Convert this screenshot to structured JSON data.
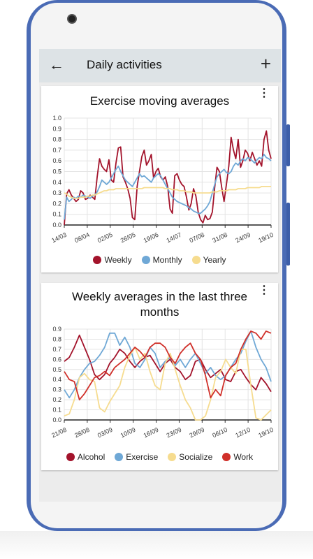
{
  "appbar": {
    "title": "Daily activities",
    "back_icon": "arrow-left",
    "add_icon": "plus"
  },
  "chart_data": [
    {
      "type": "line",
      "title": "Exercise moving averages",
      "x_ticks": [
        "14/03",
        "08/04",
        "02/05",
        "26/05",
        "19/06",
        "14/07",
        "07/08",
        "31/08",
        "24/09",
        "19/10"
      ],
      "y_ticks": [
        "0.0",
        "0.1",
        "0.2",
        "0.3",
        "0.4",
        "0.5",
        "0.6",
        "0.7",
        "0.8",
        "0.9",
        "1.0"
      ],
      "ylim": [
        0,
        1.0
      ],
      "legend": "bottom",
      "series": [
        {
          "name": "Weekly",
          "color": "#a3132b",
          "values": [
            0.0,
            0.29,
            0.33,
            0.28,
            0.25,
            0.22,
            0.24,
            0.32,
            0.3,
            0.24,
            0.25,
            0.28,
            0.26,
            0.24,
            0.45,
            0.62,
            0.55,
            0.52,
            0.5,
            0.61,
            0.42,
            0.4,
            0.58,
            0.72,
            0.73,
            0.45,
            0.4,
            0.34,
            0.25,
            0.07,
            0.05,
            0.36,
            0.5,
            0.64,
            0.7,
            0.56,
            0.6,
            0.66,
            0.44,
            0.5,
            0.53,
            0.45,
            0.42,
            0.45,
            0.36,
            0.15,
            0.11,
            0.46,
            0.48,
            0.42,
            0.38,
            0.36,
            0.26,
            0.14,
            0.2,
            0.34,
            0.27,
            0.12,
            0.05,
            0.02,
            0.09,
            0.05,
            0.06,
            0.12,
            0.35,
            0.54,
            0.5,
            0.35,
            0.22,
            0.38,
            0.55,
            0.82,
            0.7,
            0.62,
            0.8,
            0.54,
            0.6,
            0.7,
            0.67,
            0.6,
            0.68,
            0.62,
            0.56,
            0.6,
            0.55,
            0.8,
            0.88,
            0.7,
            0.62
          ]
        },
        {
          "name": "Monthly",
          "color": "#6fa8d6",
          "values": [
            0.05,
            0.26,
            0.22,
            0.24,
            0.26,
            0.25,
            0.27,
            0.26,
            0.28,
            0.27,
            0.26,
            0.25,
            0.27,
            0.28,
            0.31,
            0.36,
            0.42,
            0.4,
            0.38,
            0.4,
            0.44,
            0.48,
            0.52,
            0.55,
            0.5,
            0.46,
            0.42,
            0.4,
            0.38,
            0.36,
            0.4,
            0.44,
            0.48,
            0.45,
            0.46,
            0.44,
            0.42,
            0.4,
            0.44,
            0.46,
            0.48,
            0.46,
            0.42,
            0.38,
            0.34,
            0.3,
            0.26,
            0.24,
            0.22,
            0.21,
            0.2,
            0.19,
            0.18,
            0.16,
            0.15,
            0.13,
            0.12,
            0.11,
            0.11,
            0.13,
            0.15,
            0.18,
            0.22,
            0.3,
            0.38,
            0.45,
            0.48,
            0.5,
            0.52,
            0.49,
            0.48,
            0.5,
            0.55,
            0.58,
            0.56,
            0.6,
            0.62,
            0.6,
            0.63,
            0.62,
            0.6,
            0.58,
            0.61,
            0.63,
            0.62,
            0.66,
            0.63,
            0.62,
            0.6
          ]
        },
        {
          "name": "Yearly",
          "color": "#f6dc8f",
          "values": [
            0.3,
            0.29,
            0.27,
            0.26,
            0.25,
            0.25,
            0.25,
            0.26,
            0.26,
            0.26,
            0.27,
            0.27,
            0.28,
            0.28,
            0.29,
            0.3,
            0.31,
            0.32,
            0.32,
            0.33,
            0.33,
            0.33,
            0.34,
            0.34,
            0.34,
            0.34,
            0.34,
            0.34,
            0.34,
            0.34,
            0.34,
            0.34,
            0.34,
            0.34,
            0.35,
            0.35,
            0.35,
            0.35,
            0.35,
            0.35,
            0.35,
            0.35,
            0.35,
            0.34,
            0.34,
            0.34,
            0.33,
            0.33,
            0.33,
            0.32,
            0.32,
            0.32,
            0.31,
            0.31,
            0.31,
            0.3,
            0.3,
            0.3,
            0.3,
            0.3,
            0.3,
            0.3,
            0.3,
            0.31,
            0.31,
            0.31,
            0.32,
            0.32,
            0.32,
            0.32,
            0.33,
            0.33,
            0.33,
            0.33,
            0.34,
            0.34,
            0.34,
            0.34,
            0.35,
            0.35,
            0.35,
            0.35,
            0.35,
            0.35,
            0.36,
            0.36,
            0.36,
            0.36,
            0.36
          ]
        }
      ]
    },
    {
      "type": "line",
      "title": "Weekly averages in the last three months",
      "x_ticks": [
        "21/08",
        "28/08",
        "03/09",
        "10/09",
        "16/09",
        "23/09",
        "29/09",
        "06/10",
        "12/10",
        "19/10"
      ],
      "y_ticks": [
        "0.0",
        "0.1",
        "0.2",
        "0.3",
        "0.4",
        "0.5",
        "0.6",
        "0.7",
        "0.8",
        "0.9"
      ],
      "ylim": [
        0,
        0.9
      ],
      "legend": "bottom",
      "series": [
        {
          "name": "Alcohol",
          "color": "#a3132b",
          "values": [
            0.58,
            0.62,
            0.72,
            0.84,
            0.72,
            0.6,
            0.45,
            0.4,
            0.45,
            0.56,
            0.62,
            0.7,
            0.66,
            0.58,
            0.52,
            0.58,
            0.62,
            0.64,
            0.56,
            0.48,
            0.56,
            0.6,
            0.52,
            0.48,
            0.4,
            0.44,
            0.58,
            0.6,
            0.5,
            0.42,
            0.46,
            0.5,
            0.4,
            0.38,
            0.48,
            0.5,
            0.42,
            0.35,
            0.3,
            0.42,
            0.36,
            0.28
          ]
        },
        {
          "name": "Exercise",
          "color": "#6fa8d6",
          "values": [
            0.3,
            0.22,
            0.3,
            0.42,
            0.5,
            0.56,
            0.58,
            0.64,
            0.72,
            0.86,
            0.86,
            0.74,
            0.82,
            0.72,
            0.56,
            0.52,
            0.6,
            0.72,
            0.66,
            0.52,
            0.58,
            0.62,
            0.54,
            0.6,
            0.52,
            0.6,
            0.66,
            0.56,
            0.46,
            0.52,
            0.44,
            0.4,
            0.44,
            0.52,
            0.6,
            0.66,
            0.78,
            0.88,
            0.72,
            0.6,
            0.52,
            0.38
          ]
        },
        {
          "name": "Socialize",
          "color": "#f6dc8f",
          "values": [
            0.04,
            0.06,
            0.2,
            0.42,
            0.46,
            0.4,
            0.38,
            0.12,
            0.08,
            0.18,
            0.26,
            0.34,
            0.52,
            0.64,
            0.72,
            0.6,
            0.66,
            0.48,
            0.34,
            0.3,
            0.56,
            0.66,
            0.5,
            0.34,
            0.2,
            0.12,
            0.0,
            0.0,
            0.04,
            0.2,
            0.42,
            0.48,
            0.6,
            0.52,
            0.46,
            0.7,
            0.7,
            0.34,
            0.02,
            0.0,
            0.05,
            0.1
          ]
        },
        {
          "name": "Work",
          "color": "#d0302a",
          "values": [
            0.48,
            0.4,
            0.38,
            0.2,
            0.26,
            0.34,
            0.42,
            0.44,
            0.48,
            0.44,
            0.52,
            0.56,
            0.6,
            0.66,
            0.72,
            0.68,
            0.62,
            0.72,
            0.76,
            0.76,
            0.72,
            0.62,
            0.56,
            0.66,
            0.72,
            0.76,
            0.66,
            0.6,
            0.44,
            0.22,
            0.3,
            0.24,
            0.44,
            0.52,
            0.56,
            0.7,
            0.8,
            0.88,
            0.86,
            0.8,
            0.88,
            0.86
          ]
        }
      ]
    }
  ]
}
